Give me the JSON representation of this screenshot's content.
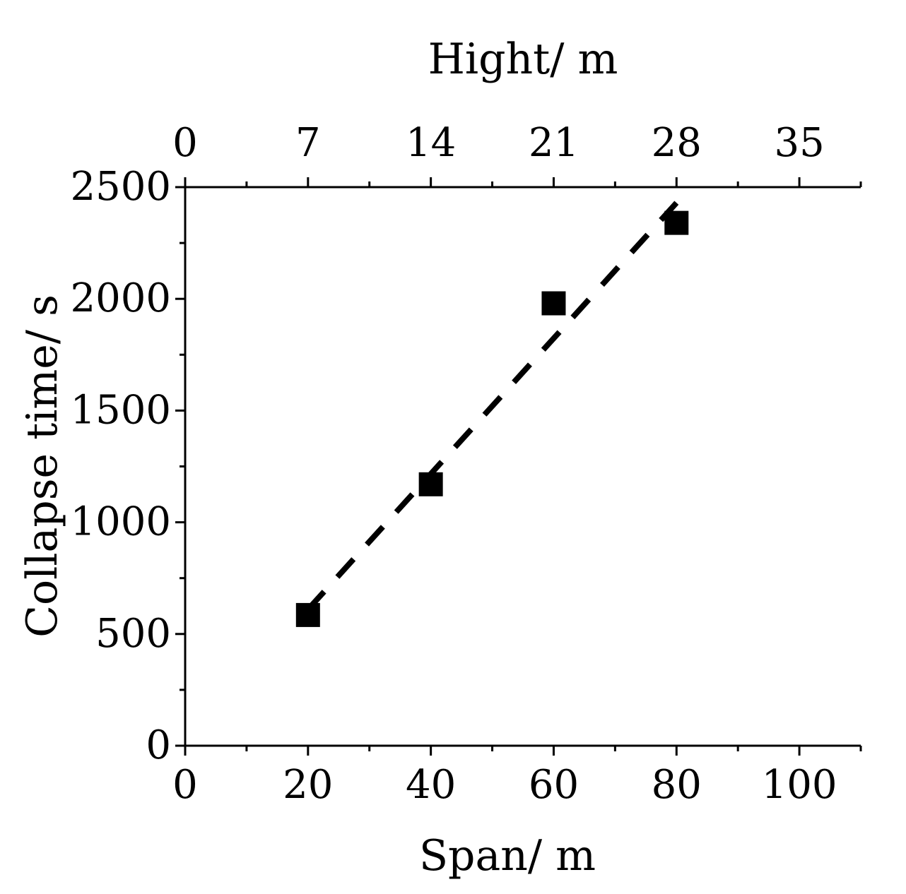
{
  "chart_data": {
    "type": "scatter",
    "title": "",
    "xlabel": "Span/ m",
    "ylabel": "Collapse time/ s",
    "x2label": "Hight/ m",
    "xlim": [
      0,
      110
    ],
    "ylim": [
      0,
      2500
    ],
    "x2lim": [
      0,
      38.5
    ],
    "x_ticks": [
      0,
      20,
      40,
      60,
      80,
      100
    ],
    "y_ticks": [
      0,
      500,
      1000,
      1500,
      2000,
      2500
    ],
    "x2_ticks": [
      0,
      7,
      14,
      21,
      28,
      35
    ],
    "grid": false,
    "series": [
      {
        "type": "scatter",
        "marker": "square",
        "color": "#000000",
        "points": [
          {
            "x": 20,
            "y": 585
          },
          {
            "x": 40,
            "y": 1170
          },
          {
            "x": 60,
            "y": 1980
          },
          {
            "x": 80,
            "y": 2340
          }
        ]
      },
      {
        "type": "line",
        "style": "dashed",
        "color": "#000000",
        "points": [
          {
            "x": 20,
            "y": 610
          },
          {
            "x": 80,
            "y": 2430
          }
        ]
      }
    ]
  }
}
